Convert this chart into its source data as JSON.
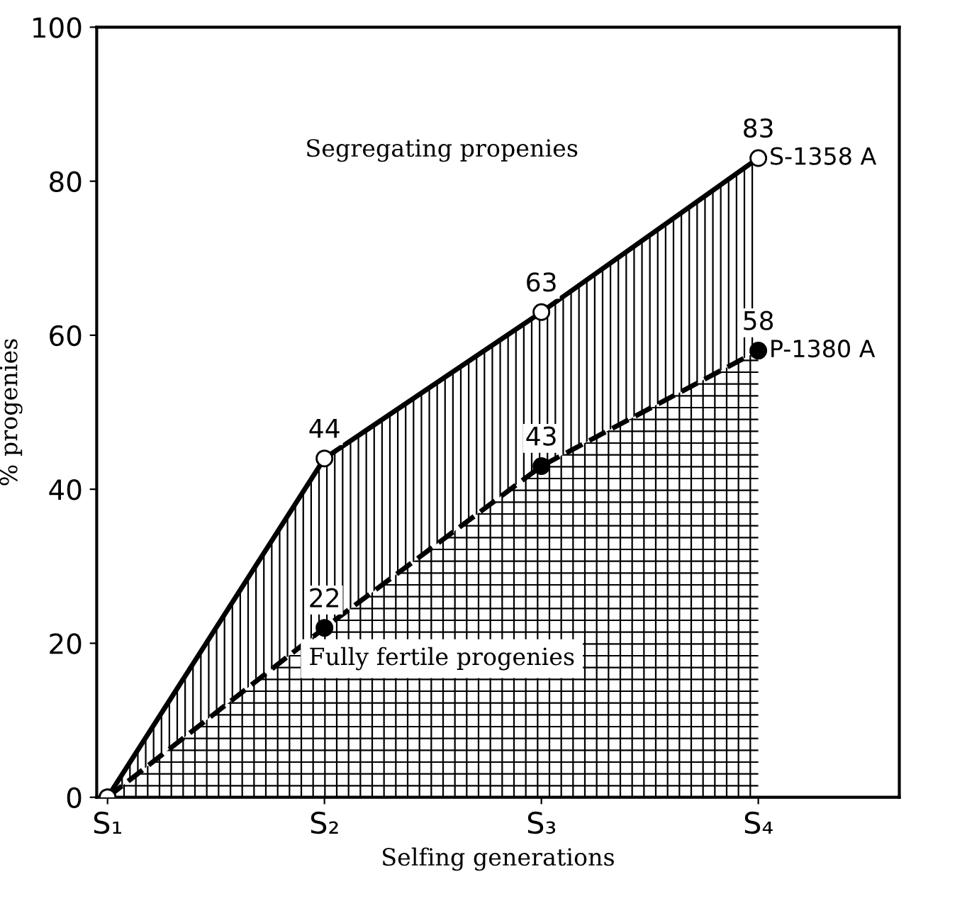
{
  "chart_data": {
    "type": "area",
    "xlabel": "Selfing generations",
    "ylabel": "% progenies",
    "categories": [
      "S₁",
      "S₂",
      "S₃",
      "S₄"
    ],
    "series": [
      {
        "name": "P-1380 A",
        "color": "#000000",
        "values": [
          0,
          22,
          43,
          58
        ],
        "value_labels": [
          null,
          "22",
          "43",
          "58"
        ],
        "line_style": "dashed",
        "marker": "circle"
      },
      {
        "name": "S-1358 A",
        "color": "#000000",
        "values": [
          0,
          44,
          63,
          83
        ],
        "value_labels": [
          null,
          "44",
          "63",
          "83"
        ],
        "line_style": "solid",
        "marker": "circle"
      }
    ],
    "ylim": [
      0,
      100
    ],
    "yticks": [
      0,
      20,
      40,
      60,
      80,
      100
    ],
    "grid": false,
    "legend": false,
    "annotations": [
      "Segregating propenies",
      "Fully fertile progenies"
    ]
  }
}
